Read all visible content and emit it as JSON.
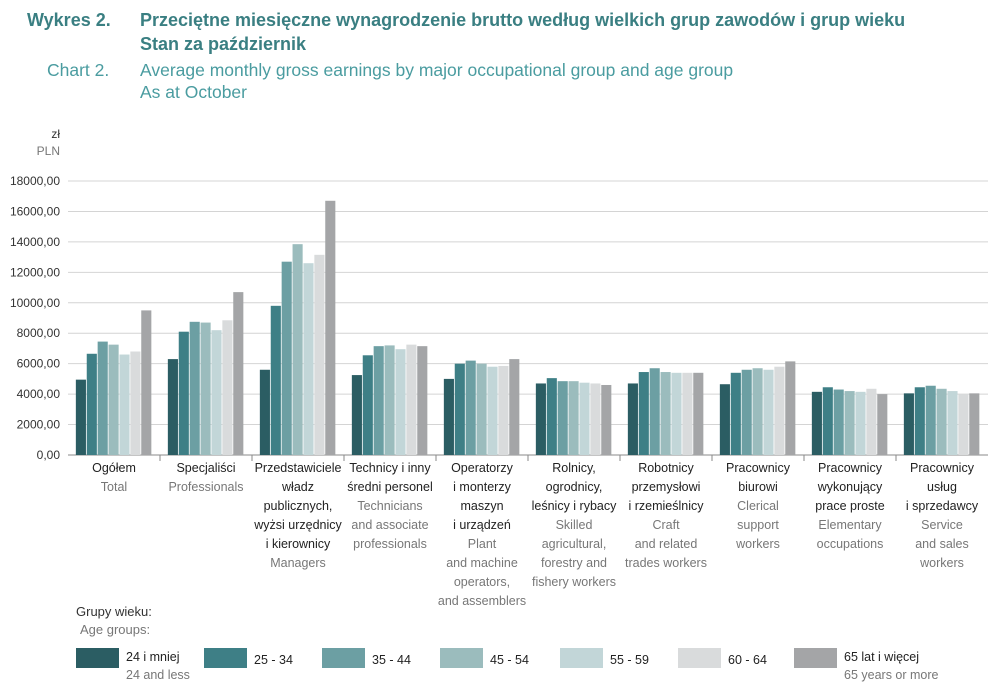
{
  "header": {
    "label_pl": "Wykres 2.",
    "title_pl_1": "Przeciętne miesięczne wynagrodzenie brutto według wielkich grup zawodów i grup wieku",
    "title_pl_2": "Stan za październik",
    "label_en": "Chart 2.",
    "title_en_1": "Average monthly gross earnings by major occupational group and age group",
    "title_en_2": "As at October"
  },
  "legend": {
    "title_pl": "Grupy wieku:",
    "title_en": "Age groups:"
  },
  "chart_data": {
    "type": "bar",
    "y_unit_pl": "zł",
    "y_unit_en": "PLN",
    "ylim": [
      0,
      18000
    ],
    "yticks": [
      0,
      2000,
      4000,
      6000,
      8000,
      10000,
      12000,
      14000,
      16000,
      18000
    ],
    "ytick_labels": [
      "0,00",
      "2000,00",
      "4000,00",
      "6000,00",
      "8000,00",
      "10000,00",
      "12000,00",
      "14000,00",
      "16000,00",
      "18000,00"
    ],
    "grid": true,
    "legend_position": "bottom",
    "categories": [
      {
        "pl": [
          "Ogółem"
        ],
        "en": [
          "Total"
        ]
      },
      {
        "pl": [
          "Specjaliści"
        ],
        "en": [
          "Professionals"
        ]
      },
      {
        "pl": [
          "Przedstawiciele",
          "władz",
          "publicznych,",
          "wyżsi urzędnicy",
          "i kierownicy"
        ],
        "en": [
          "Managers"
        ]
      },
      {
        "pl": [
          "Technicy i inny",
          "średni personel"
        ],
        "en": [
          "Technicians",
          "and associate",
          "professionals"
        ]
      },
      {
        "pl": [
          "Operatorzy",
          "i monterzy",
          "maszyn",
          "i urządzeń"
        ],
        "en": [
          "Plant",
          "and machine",
          "operators,",
          "and assemblers"
        ]
      },
      {
        "pl": [
          "Rolnicy,",
          "ogrodnicy,",
          "leśnicy i rybacy"
        ],
        "en": [
          "Skilled",
          "agricultural,",
          "forestry and",
          "fishery workers"
        ]
      },
      {
        "pl": [
          "Robotnicy",
          "przemysłowi",
          "i rzemieślnicy"
        ],
        "en": [
          "Craft",
          "and related",
          "trades workers"
        ]
      },
      {
        "pl": [
          "Pracownicy",
          "biurowi"
        ],
        "en": [
          "Clerical",
          "support",
          "workers"
        ]
      },
      {
        "pl": [
          "Pracownicy",
          "wykonujący",
          "prace proste"
        ],
        "en": [
          "Elementary",
          "occupations"
        ]
      },
      {
        "pl": [
          "Pracownicy",
          "usług",
          "i sprzedawcy"
        ],
        "en": [
          "Service",
          "and sales",
          "workers"
        ]
      }
    ],
    "series": [
      {
        "name_pl": "24 i mniej",
        "name_en": "24 and less",
        "color": "#2b5d63",
        "values": [
          4950,
          6300,
          5600,
          5250,
          5000,
          4700,
          4700,
          4650,
          4150,
          4050
        ]
      },
      {
        "name_pl": "25 - 34",
        "name_en": "",
        "color": "#3e7f86",
        "values": [
          6650,
          8100,
          9800,
          6550,
          6000,
          5050,
          5450,
          5400,
          4450,
          4450
        ]
      },
      {
        "name_pl": "35 - 44",
        "name_en": "",
        "color": "#6c9fa3",
        "values": [
          7450,
          8750,
          12700,
          7150,
          6200,
          4850,
          5700,
          5600,
          4300,
          4550
        ]
      },
      {
        "name_pl": "45 - 54",
        "name_en": "",
        "color": "#9bbcbd",
        "values": [
          7250,
          8700,
          13850,
          7200,
          6000,
          4850,
          5450,
          5700,
          4200,
          4350
        ]
      },
      {
        "name_pl": "55 - 59",
        "name_en": "",
        "color": "#c2d6d8",
        "values": [
          6600,
          8200,
          12600,
          6950,
          5800,
          4750,
          5400,
          5600,
          4150,
          4200
        ]
      },
      {
        "name_pl": "60 - 64",
        "name_en": "",
        "color": "#d9dbdc",
        "values": [
          6800,
          8850,
          13150,
          7250,
          5850,
          4700,
          5400,
          5800,
          4350,
          4000
        ]
      },
      {
        "name_pl": "65 lat i więcej",
        "name_en": "65 years or more",
        "color": "#a4a5a7",
        "values": [
          9500,
          10700,
          16700,
          7150,
          6300,
          4600,
          5400,
          6150,
          4000,
          4050
        ]
      }
    ]
  }
}
